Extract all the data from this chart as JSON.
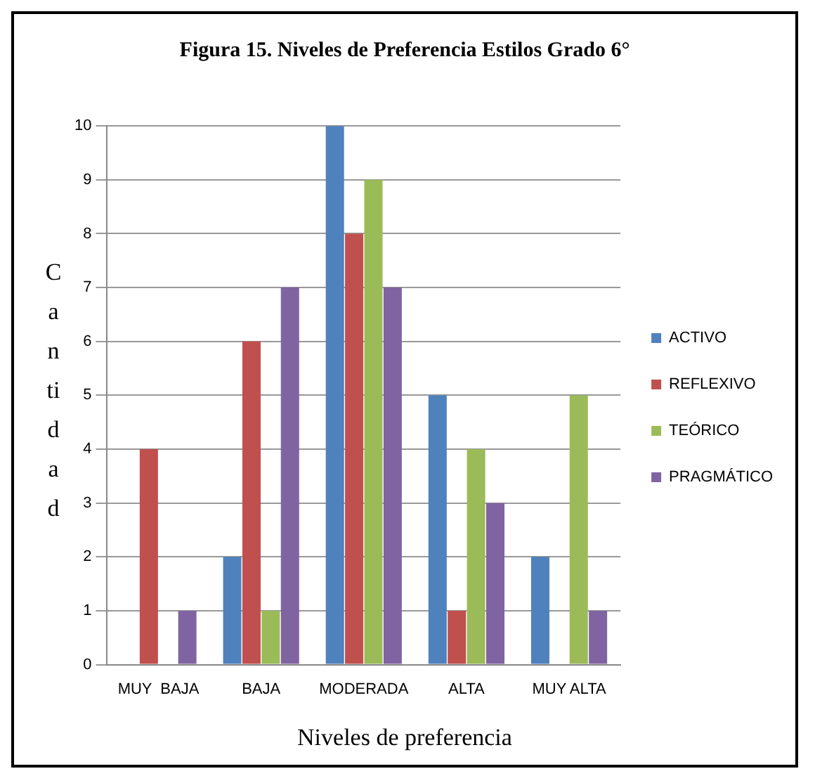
{
  "chart_data": {
    "type": "bar",
    "title": "Figura 15. Niveles de Preferencia Estilos Grado 6°",
    "xlabel": "Niveles de preferencia",
    "ylabel": "Cantidad",
    "categories": [
      "MUY  BAJA",
      "BAJA",
      "MODERADA",
      "ALTA",
      "MUY ALTA"
    ],
    "series": [
      {
        "name": "ACTIVO",
        "color": "#4f81bd",
        "values": [
          0,
          2,
          10,
          5,
          2
        ]
      },
      {
        "name": "REFLEXIVO",
        "color": "#c0504d",
        "values": [
          4,
          6,
          8,
          1,
          0
        ]
      },
      {
        "name": "TEÓRICO",
        "color": "#9bbb59",
        "values": [
          0,
          1,
          9,
          4,
          5
        ]
      },
      {
        "name": "PRAGMÁTICO",
        "color": "#8064a2",
        "values": [
          1,
          7,
          7,
          3,
          1
        ]
      }
    ],
    "ylim": [
      0,
      10
    ],
    "yticks": [
      0,
      1,
      2,
      3,
      4,
      5,
      6,
      7,
      8,
      9,
      10
    ],
    "grid": "y",
    "legend": "right"
  }
}
